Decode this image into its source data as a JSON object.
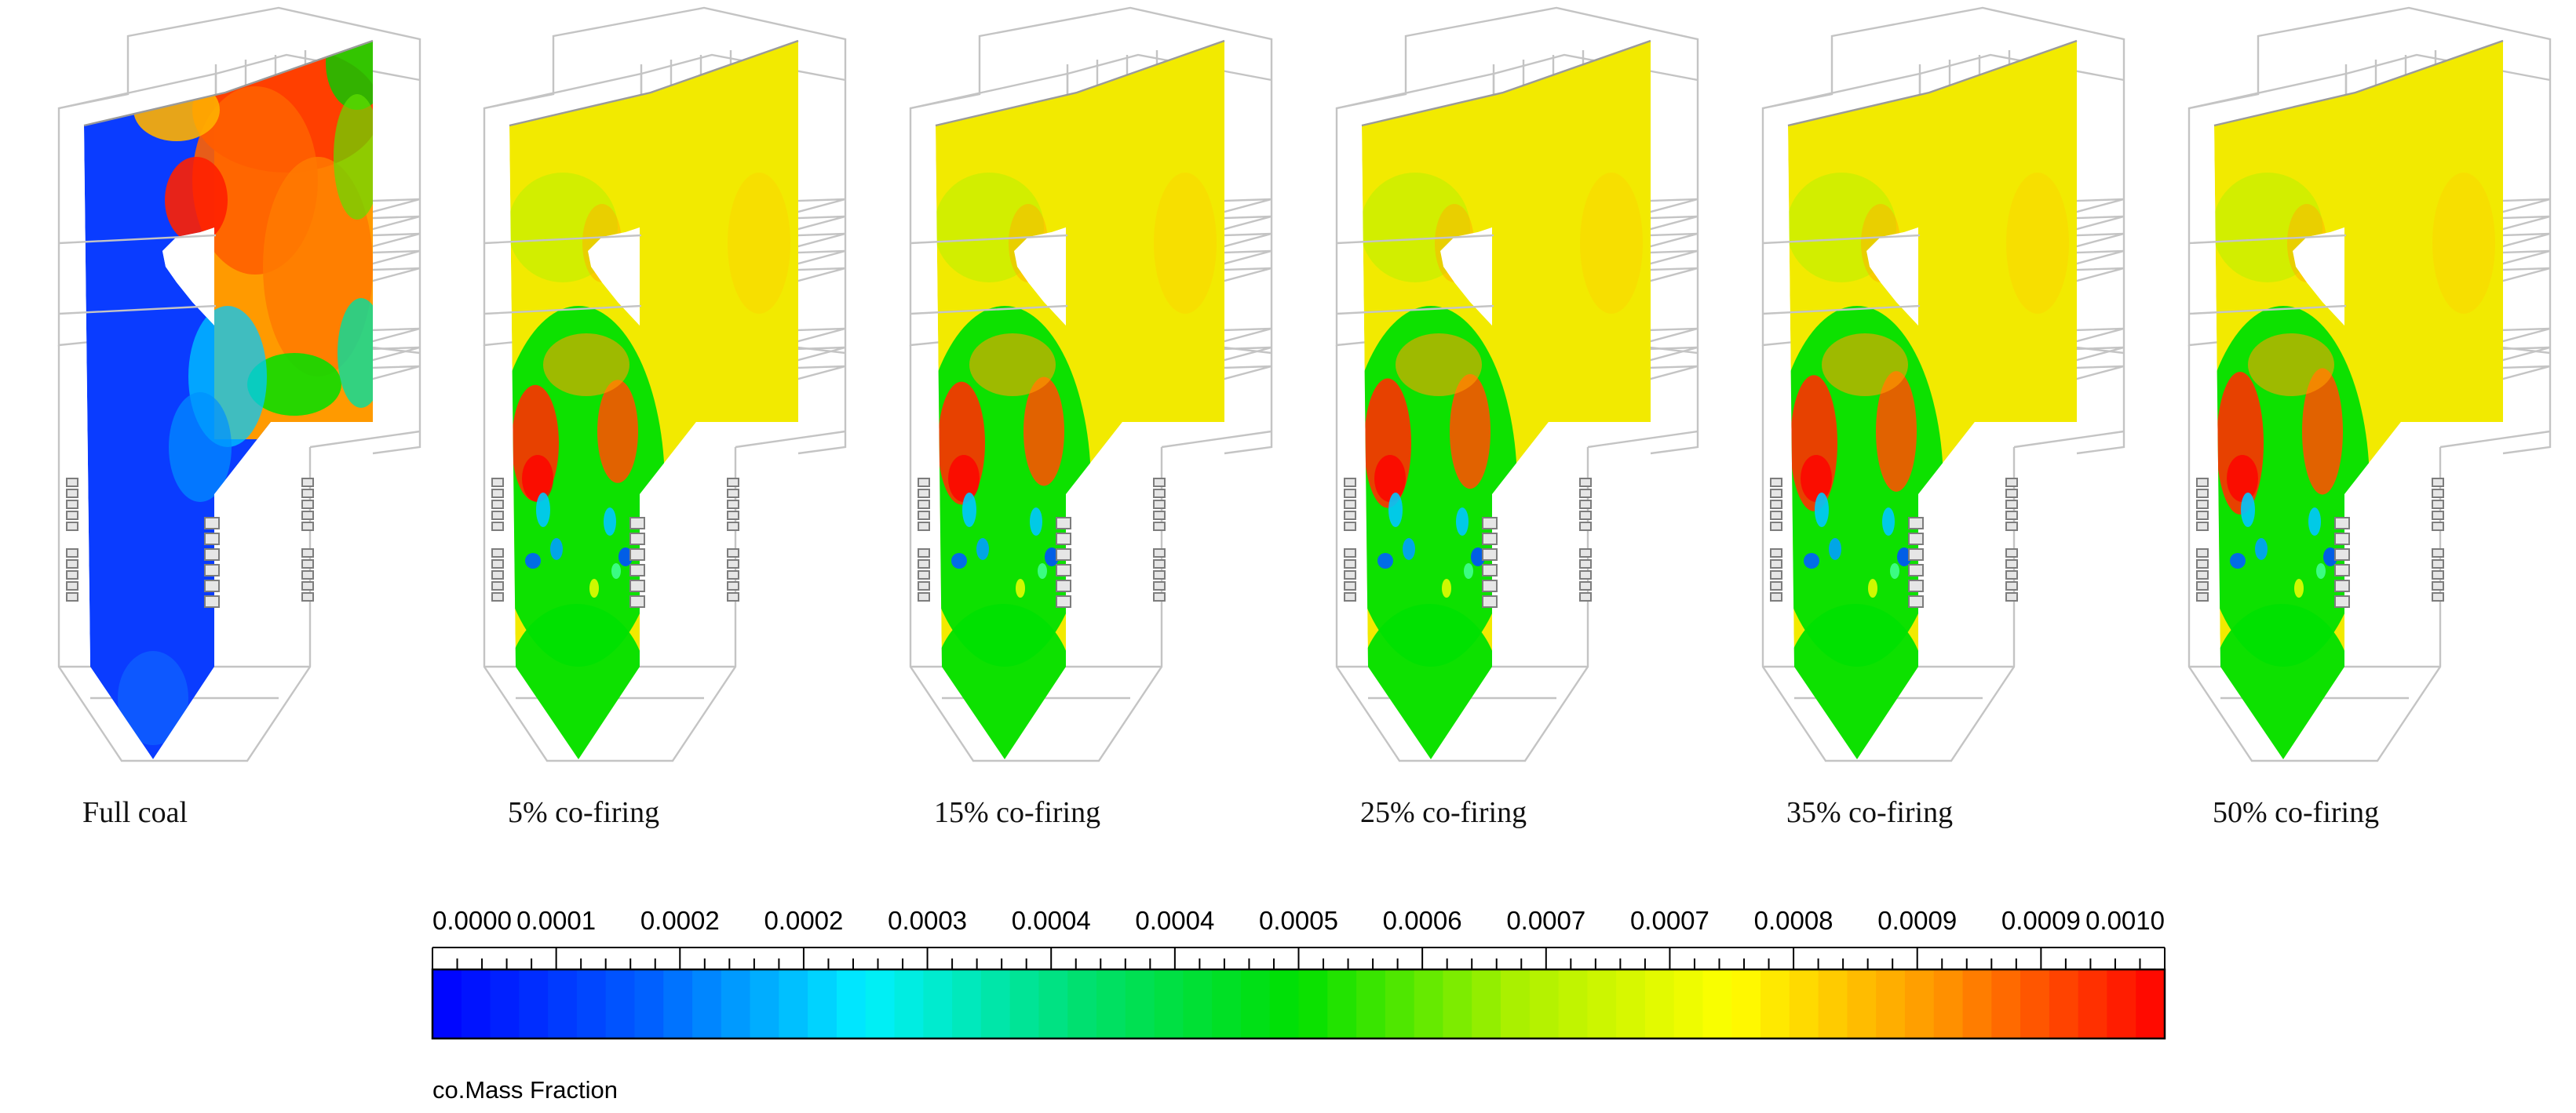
{
  "panels": [
    {
      "caption": "Full coal",
      "scheme": "full"
    },
    {
      "caption": "5% co-firing",
      "scheme": "co"
    },
    {
      "caption": "15% co-firing",
      "scheme": "co"
    },
    {
      "caption": "25% co-firing",
      "scheme": "co"
    },
    {
      "caption": "35% co-firing",
      "scheme": "co"
    },
    {
      "caption": "50% co-firing",
      "scheme": "co"
    }
  ],
  "colorbar": {
    "title": "co.Mass Fraction",
    "ticks": [
      "0.0000",
      "0.0001",
      "0.0002",
      "0.0002",
      "0.0003",
      "0.0004",
      "0.0004",
      "0.0005",
      "0.0006",
      "0.0007",
      "0.0007",
      "0.0008",
      "0.0009",
      "0.0009",
      "0.0010"
    ],
    "min": 0.0,
    "max": 0.001,
    "bands": 60,
    "colors": [
      "#0000ff",
      "#0060ff",
      "#00f0ff",
      "#00e070",
      "#00e000",
      "#aaf000",
      "#ffff00",
      "#ff9000",
      "#ff0000"
    ]
  }
}
